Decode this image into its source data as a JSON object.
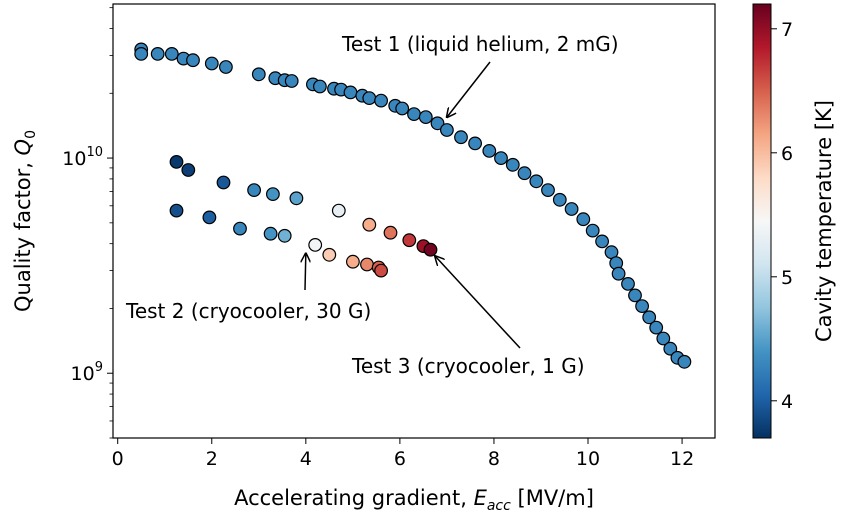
{
  "chart_data": {
    "type": "scatter",
    "xlabel_text": "Accelerating gradient, ",
    "xlabel_sym": "E",
    "xlabel_sub": "acc",
    "xlabel_unit": " [MV/m]",
    "ylabel_text": "Quality factor, ",
    "ylabel_sym": "Q",
    "ylabel_sub": "0",
    "xlim": [
      -0.1,
      12.7
    ],
    "ylim": [
      500000000.0,
      52000000000.0
    ],
    "yscale": "log",
    "x_ticks": [
      0,
      2,
      4,
      6,
      8,
      10,
      12
    ],
    "y_ticks": [
      {
        "value": 1000000000.0,
        "base": "10",
        "exp": "9"
      },
      {
        "value": 10000000000.0,
        "base": "10",
        "exp": "10"
      }
    ],
    "colorbar": {
      "label": "Cavity temperature [K]",
      "range": [
        3.7,
        7.2
      ],
      "ticks": [
        4,
        5,
        6,
        7
      ],
      "colormap": "RdBu_r"
    },
    "series": [
      {
        "points": [
          [
            0.5,
            32000000000.0,
            4.3
          ],
          [
            0.5,
            30500000000.0,
            4.3
          ],
          [
            0.85,
            30500000000.0,
            4.3
          ],
          [
            1.15,
            30500000000.0,
            4.3
          ],
          [
            1.4,
            29000000000.0,
            4.3
          ],
          [
            1.6,
            28500000000.0,
            4.3
          ],
          [
            2.0,
            27500000000.0,
            4.3
          ],
          [
            2.3,
            26500000000.0,
            4.3
          ],
          [
            3.0,
            24500000000.0,
            4.3
          ],
          [
            3.35,
            23500000000.0,
            4.3
          ],
          [
            3.55,
            23000000000.0,
            4.3
          ],
          [
            3.7,
            22800000000.0,
            4.3
          ],
          [
            4.15,
            22000000000.0,
            4.3
          ],
          [
            4.3,
            21500000000.0,
            4.3
          ],
          [
            4.6,
            21000000000.0,
            4.3
          ],
          [
            4.75,
            20800000000.0,
            4.3
          ],
          [
            4.95,
            20200000000.0,
            4.3
          ],
          [
            5.2,
            19500000000.0,
            4.3
          ],
          [
            5.35,
            19000000000.0,
            4.3
          ],
          [
            5.6,
            18500000000.0,
            4.3
          ],
          [
            5.9,
            17500000000.0,
            4.3
          ],
          [
            6.05,
            17000000000.0,
            4.3
          ],
          [
            6.3,
            16000000000.0,
            4.3
          ],
          [
            6.55,
            15500000000.0,
            4.3
          ],
          [
            6.8,
            14500000000.0,
            4.3
          ],
          [
            7.0,
            13500000000.0,
            4.3
          ],
          [
            7.3,
            12500000000.0,
            4.3
          ],
          [
            7.6,
            11700000000.0,
            4.3
          ],
          [
            7.9,
            10800000000.0,
            4.3
          ],
          [
            8.15,
            10000000000.0,
            4.3
          ],
          [
            8.4,
            9300000000.0,
            4.3
          ],
          [
            8.65,
            8500000000.0,
            4.3
          ],
          [
            8.9,
            7800000000.0,
            4.3
          ],
          [
            9.15,
            7100000000.0,
            4.3
          ],
          [
            9.4,
            6400000000.0,
            4.3
          ],
          [
            9.65,
            5800000000.0,
            4.3
          ],
          [
            9.9,
            5200000000.0,
            4.3
          ],
          [
            10.1,
            4600000000.0,
            4.3
          ],
          [
            10.3,
            4100000000.0,
            4.3
          ],
          [
            10.5,
            3650000000.0,
            4.3
          ],
          [
            10.6,
            3250000000.0,
            4.3
          ],
          [
            10.65,
            2900000000.0,
            4.3
          ],
          [
            10.85,
            2600000000.0,
            4.3
          ],
          [
            11.0,
            2300000000.0,
            4.3
          ],
          [
            11.15,
            2050000000.0,
            4.3
          ],
          [
            11.3,
            1820000000.0,
            4.3
          ],
          [
            11.45,
            1630000000.0,
            4.3
          ],
          [
            11.6,
            1450000000.0,
            4.3
          ],
          [
            11.75,
            1300000000.0,
            4.3
          ],
          [
            11.9,
            1180000000.0,
            4.3
          ],
          [
            12.05,
            1130000000.0,
            4.3
          ]
        ]
      },
      {
        "points": [
          [
            1.25,
            5700000000.0,
            3.9
          ],
          [
            1.95,
            5300000000.0,
            4.0
          ],
          [
            2.6,
            4700000000.0,
            4.3
          ],
          [
            3.25,
            4450000000.0,
            4.4
          ],
          [
            3.55,
            4350000000.0,
            4.6
          ],
          [
            4.2,
            3950000000.0,
            5.4
          ],
          [
            4.5,
            3550000000.0,
            5.9
          ],
          [
            5.0,
            3300000000.0,
            6.1
          ],
          [
            5.3,
            3200000000.0,
            6.3
          ],
          [
            5.55,
            3100000000.0,
            6.5
          ],
          [
            5.6,
            3000000000.0,
            6.6
          ]
        ]
      },
      {
        "points": [
          [
            1.25,
            9600000000.0,
            3.75
          ],
          [
            1.5,
            8800000000.0,
            3.8
          ],
          [
            2.25,
            7700000000.0,
            3.95
          ],
          [
            2.9,
            7100000000.0,
            4.3
          ],
          [
            3.3,
            6800000000.0,
            4.4
          ],
          [
            3.8,
            6500000000.0,
            4.5
          ],
          [
            4.7,
            5700000000.0,
            5.3
          ],
          [
            5.35,
            4900000000.0,
            6.1
          ],
          [
            5.8,
            4500000000.0,
            6.4
          ],
          [
            6.2,
            4150000000.0,
            6.7
          ],
          [
            6.5,
            3900000000.0,
            6.95
          ],
          [
            6.65,
            3750000000.0,
            7.15
          ]
        ]
      }
    ],
    "annotations": [
      {
        "text": "Test 1 (liquid helium, 2 mG)",
        "target": [
          7.0,
          15500000000.0
        ]
      },
      {
        "text": "Test 2 (cryocooler, 30 G)",
        "target": [
          4.0,
          3600000000.0
        ]
      },
      {
        "text": "Test 3 (cryocooler, 1 G)",
        "target": [
          6.75,
          3500000000.0
        ]
      }
    ]
  }
}
